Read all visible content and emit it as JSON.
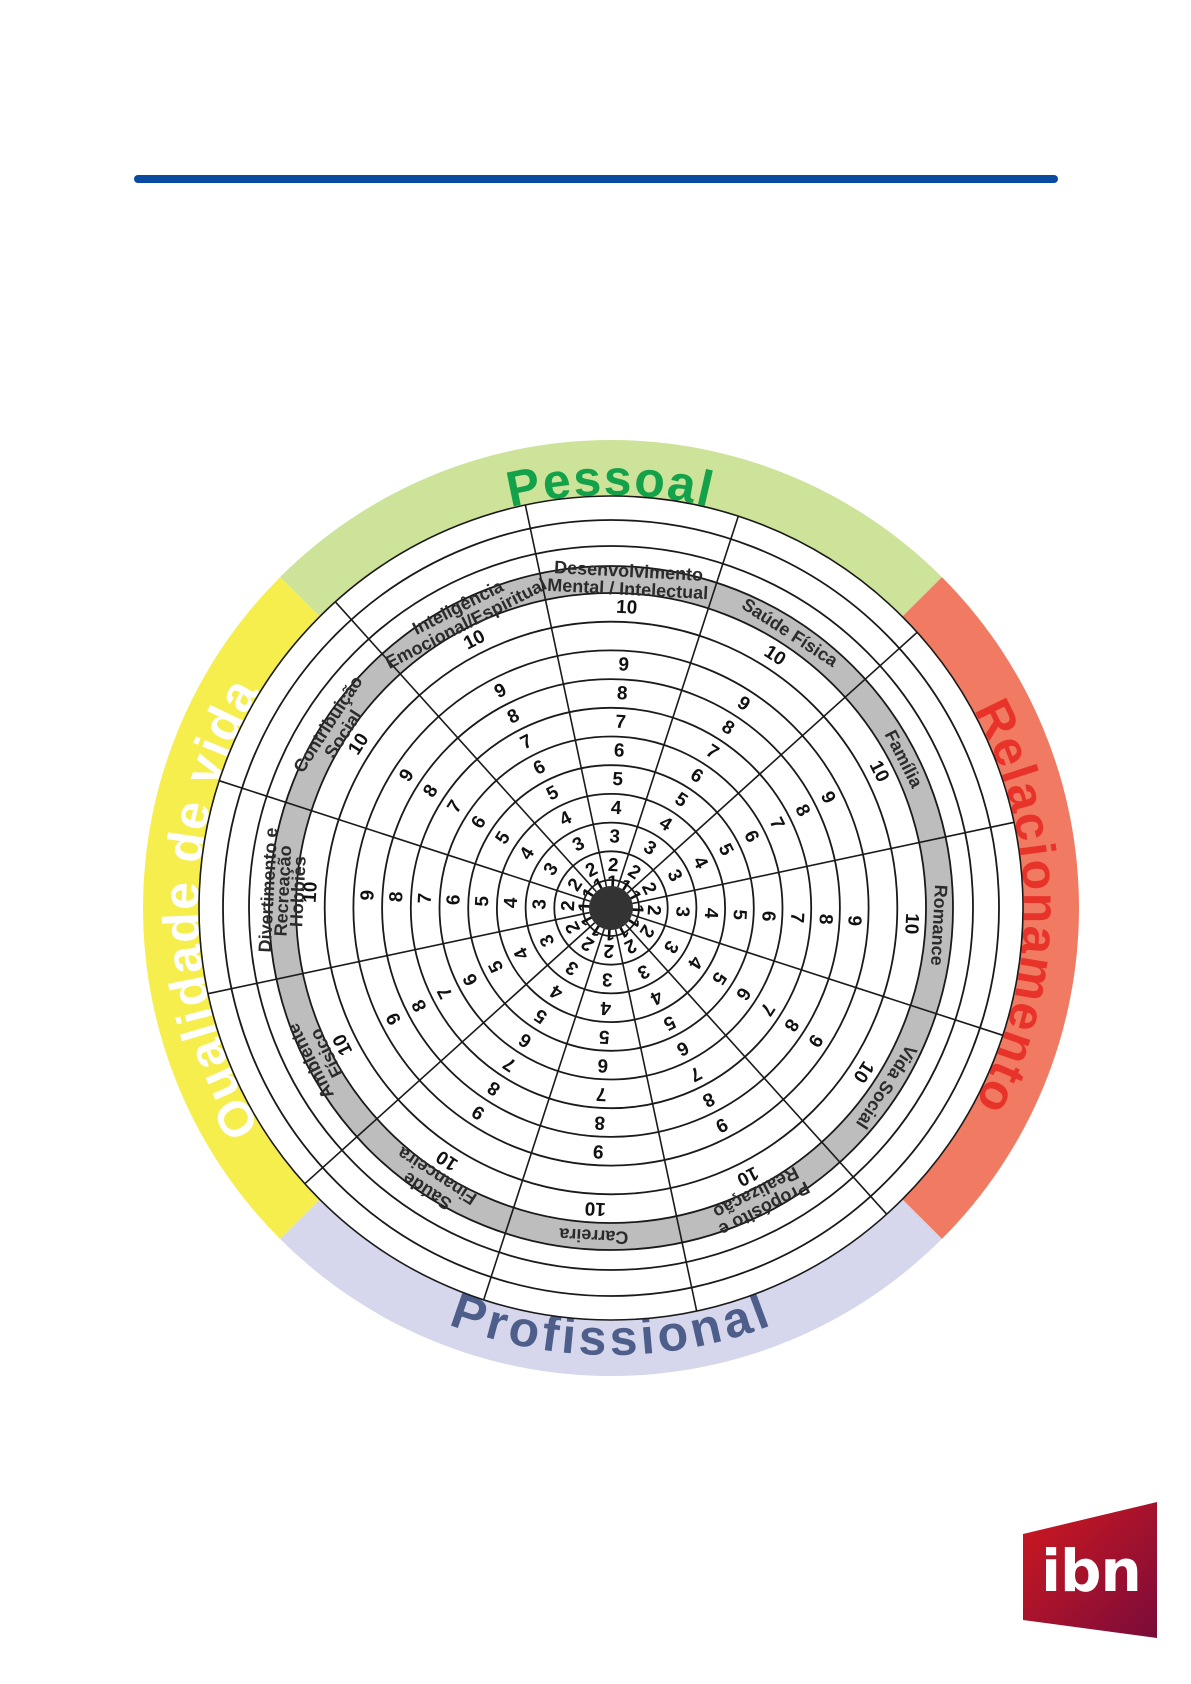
{
  "colors": {
    "rule": "#0a4aa0",
    "pessoal_band": "#cde39a",
    "pessoal_text": "#13a14a",
    "relacionamento_band": "#f07b62",
    "relacionamento_text": "#e8332a",
    "profissional_band": "#d6d6ec",
    "profissional_text": "#4d5e8a",
    "qualidade_band": "#f6ee4c",
    "qualidade_text": "#ffffff",
    "area_ring": "#bdbdbd",
    "hub": "#333333",
    "logo": "#b5121b"
  },
  "categories": [
    {
      "label": "Pessoal",
      "band": "pessoal_band",
      "text": "pessoal_text"
    },
    {
      "label": "Relacionamento",
      "band": "relacionamento_band",
      "text": "relacionamento_text"
    },
    {
      "label": "Profissional",
      "band": "profissional_band",
      "text": "profissional_text"
    },
    {
      "label": "Qualidade de vida",
      "band": "qualidade_band",
      "text": "qualidade_text"
    }
  ],
  "areas": [
    [
      "Desenvolvimento",
      "Mental / Intelectual"
    ],
    [
      "Saúde Física"
    ],
    [
      "Família"
    ],
    [
      "Romance"
    ],
    [
      "Vida Social"
    ],
    [
      "Propósito e",
      "Realização"
    ],
    [
      "Carreira"
    ],
    [
      "Saúde",
      "Financeira"
    ],
    [
      "Ambiente",
      "Físico"
    ],
    [
      "Divertimento e",
      "Recreação",
      "Hobbies"
    ],
    [
      "Contribuição",
      "Social"
    ],
    [
      "Inteligência",
      "Emocional/Espiritual"
    ]
  ],
  "scale": [
    "1",
    "2",
    "3",
    "4",
    "5",
    "6",
    "7",
    "8",
    "9",
    "10"
  ],
  "logo": {
    "text": "ibn",
    "icon": "ibn-logo-icon"
  }
}
